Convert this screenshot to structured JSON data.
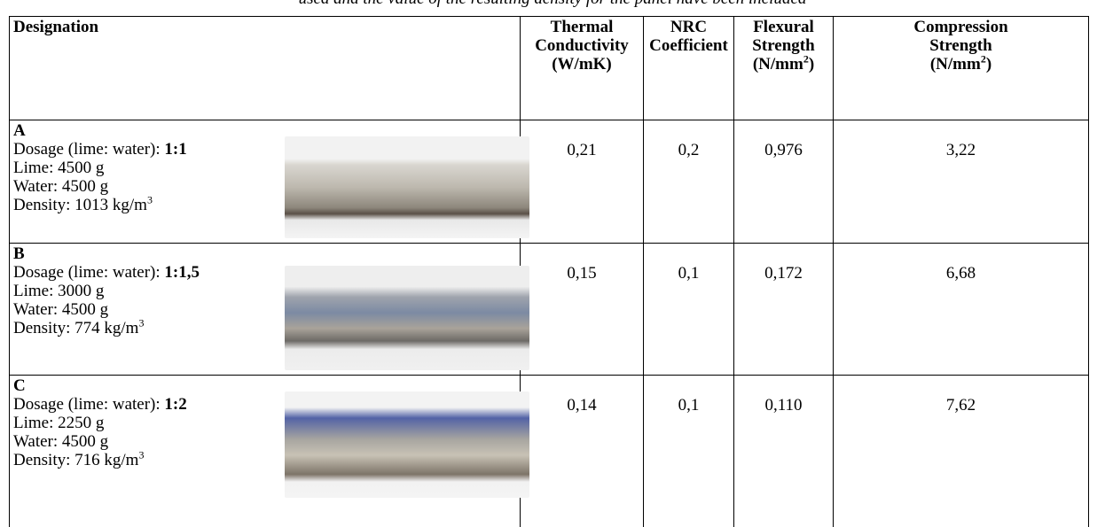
{
  "caption": "used and the value of the resulting density for the panel have been included",
  "table": {
    "headers": [
      {
        "lines": [
          "Designation"
        ]
      },
      {
        "lines": [
          "Thermal",
          "Conductivity",
          "(W/mK)"
        ]
      },
      {
        "lines": [
          "NRC",
          "Coefficient"
        ]
      },
      {
        "lines": [
          "Flexural",
          "Strength"
        ],
        "unit": [
          "(N/mm",
          "2",
          ")"
        ]
      },
      {
        "lines": [
          "Compression",
          "Strength"
        ],
        "unit": [
          "(N/mm",
          "2",
          ")"
        ]
      }
    ],
    "rows": [
      {
        "id": "A",
        "dosage_label": "Dosage (lime: water):",
        "dosage": "1:1",
        "lime": "Lime: 4500 g",
        "water": "Water: 4500 g",
        "density": [
          "Density: 1013 kg/m",
          "3"
        ],
        "values": [
          "0,21",
          "0,2",
          "0,976",
          "3,22"
        ]
      },
      {
        "id": "B",
        "dosage_label": "Dosage (lime: water):",
        "dosage": "1:1,5",
        "lime": "Lime: 3000 g",
        "water": "Water: 4500 g",
        "density": [
          "Density: 774 kg/m",
          "3"
        ],
        "values": [
          "0,15",
          "0,1",
          "0,172",
          "6,68"
        ]
      },
      {
        "id": "C",
        "dosage_label": "Dosage (lime: water):",
        "dosage": "1:2",
        "lime": "Lime: 2250 g",
        "water": "Water: 4500 g",
        "density": [
          "Density: 716 kg/m",
          "3"
        ],
        "values": [
          "0,14",
          "0,1",
          "0,110",
          "7,62"
        ]
      }
    ]
  }
}
